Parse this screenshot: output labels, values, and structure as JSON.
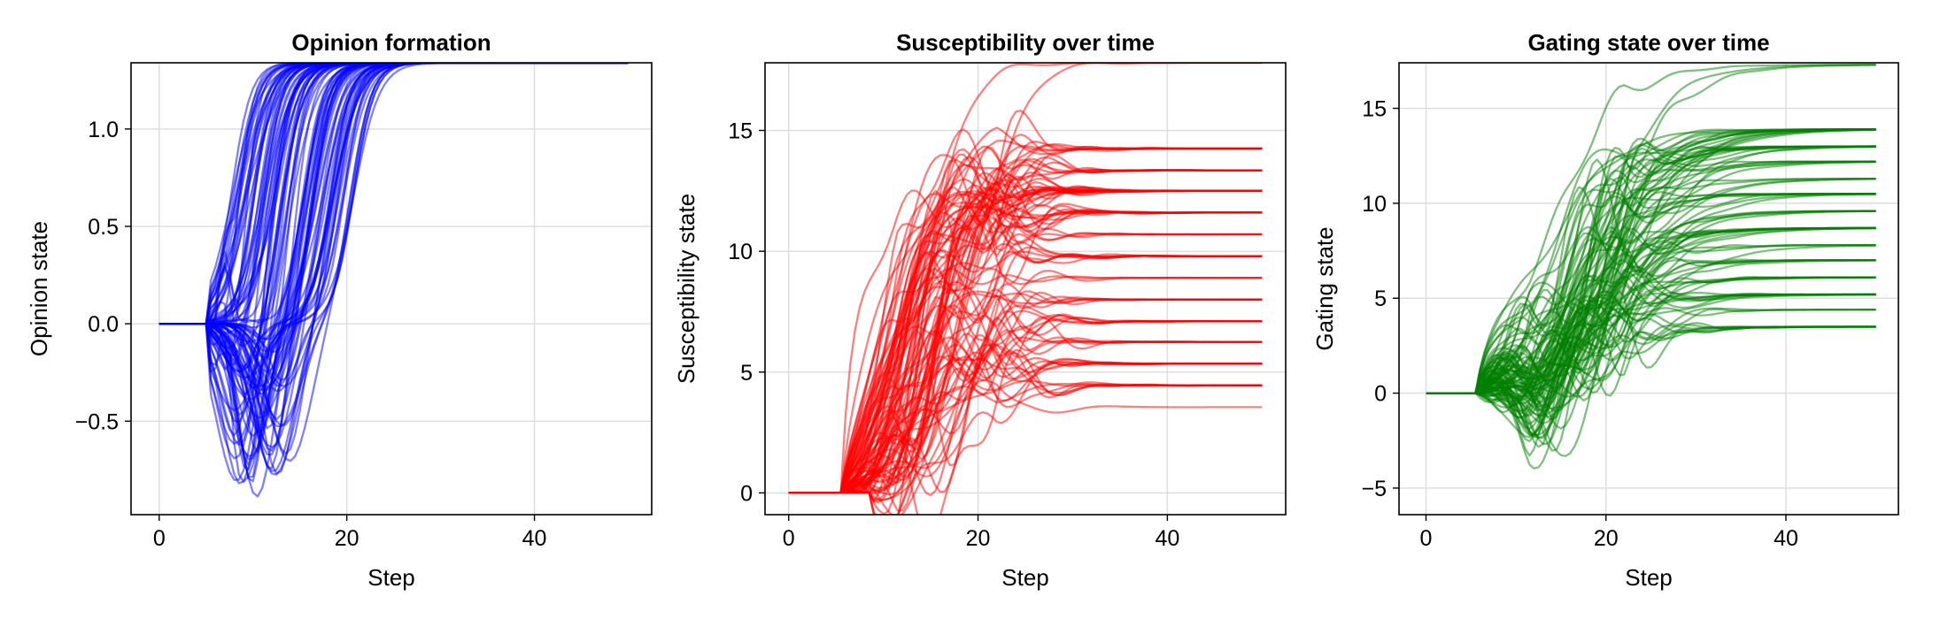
{
  "chart_data": [
    {
      "type": "line",
      "title": "Opinion formation",
      "xlabel": "Step",
      "ylabel": "Opinion state",
      "xlim": [
        -3,
        52.5
      ],
      "ylim": [
        -0.98,
        1.34
      ],
      "xticks": [
        0,
        20,
        40
      ],
      "yticks": [
        -0.5,
        0.0,
        0.5,
        1.0
      ],
      "ytick_labels": [
        "−0.5",
        "0.0",
        "0.5",
        "1.0"
      ],
      "grid": true,
      "color": "#0000ff",
      "n_series": 100,
      "x_range": [
        0,
        50
      ],
      "final_value": 1.34,
      "description_points": {
        "flat_until_step": 5,
        "trough_range": [
          -0.95,
          -0.1
        ],
        "trough_steps": [
          8,
          15
        ],
        "saturation_steps": [
          18,
          30
        ]
      }
    },
    {
      "type": "line",
      "title": "Susceptibility over time",
      "xlabel": "Step",
      "ylabel": "Susceptibility state",
      "xlim": [
        -2.5,
        52.5
      ],
      "ylim": [
        -0.9,
        17.8
      ],
      "xticks": [
        0,
        20,
        40
      ],
      "yticks": [
        0,
        5,
        10,
        15
      ],
      "ytick_labels": [
        "0",
        "5",
        "10",
        "15"
      ],
      "grid": true,
      "color": "#ff0000",
      "n_series": 100,
      "x_range": [
        0,
        50
      ],
      "final_levels": [
        3.55,
        4.45,
        5.35,
        6.25,
        7.1,
        8.0,
        8.9,
        9.8,
        10.7,
        11.6,
        12.5,
        13.35,
        14.25,
        17.8
      ]
    },
    {
      "type": "line",
      "title": "Gating state over time",
      "xlabel": "Step",
      "ylabel": "Gating state",
      "xlim": [
        -3,
        52.5
      ],
      "ylim": [
        -6.4,
        17.4
      ],
      "xticks": [
        0,
        20,
        40
      ],
      "yticks": [
        -5,
        0,
        5,
        10,
        15
      ],
      "ytick_labels": [
        "−5",
        "0",
        "5",
        "10",
        "15"
      ],
      "grid": true,
      "color": "#008000",
      "n_series": 100,
      "x_range": [
        0,
        50
      ],
      "final_levels": [
        3.5,
        4.4,
        5.2,
        6.1,
        7.0,
        7.8,
        8.7,
        9.6,
        10.5,
        11.3,
        12.2,
        13.0,
        13.9,
        17.3
      ]
    }
  ]
}
